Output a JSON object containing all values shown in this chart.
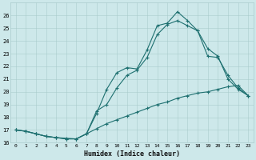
{
  "xlabel": "Humidex (Indice chaleur)",
  "xlim": [
    -0.5,
    23.5
  ],
  "ylim": [
    16,
    27
  ],
  "yticks": [
    16,
    17,
    18,
    19,
    20,
    21,
    22,
    23,
    24,
    25,
    26
  ],
  "xticks": [
    0,
    1,
    2,
    3,
    4,
    5,
    6,
    7,
    8,
    9,
    10,
    11,
    12,
    13,
    14,
    15,
    16,
    17,
    18,
    19,
    20,
    21,
    22,
    23
  ],
  "bg_color": "#cde8ea",
  "grid_color": "#aacccc",
  "line_color": "#1e7070",
  "line1_x": [
    0,
    1,
    2,
    3,
    4,
    5,
    6,
    7,
    8,
    9,
    10,
    11,
    12,
    13,
    14,
    15,
    16,
    17,
    18,
    19,
    20,
    21,
    22,
    23
  ],
  "line1_y": [
    17.0,
    16.9,
    16.7,
    16.5,
    16.4,
    16.35,
    16.3,
    16.7,
    17.1,
    17.5,
    17.8,
    18.1,
    18.4,
    18.7,
    19.0,
    19.2,
    19.5,
    19.7,
    19.9,
    20.0,
    20.2,
    20.4,
    20.5,
    19.7
  ],
  "line2_x": [
    0,
    1,
    2,
    3,
    4,
    5,
    6,
    7,
    8,
    9,
    10,
    11,
    12,
    13,
    14,
    15,
    16,
    17,
    18,
    19,
    20,
    21,
    22,
    23
  ],
  "line2_y": [
    17.0,
    16.9,
    16.7,
    16.5,
    16.4,
    16.3,
    16.3,
    16.7,
    18.3,
    20.2,
    21.5,
    21.9,
    21.8,
    23.3,
    25.2,
    25.4,
    26.3,
    25.6,
    24.8,
    23.4,
    22.8,
    21.0,
    20.2,
    19.7
  ],
  "line3_x": [
    0,
    1,
    2,
    3,
    4,
    5,
    6,
    7,
    8,
    9,
    10,
    11,
    12,
    13,
    14,
    15,
    16,
    17,
    18,
    19,
    20,
    21,
    22,
    23
  ],
  "line3_y": [
    17.0,
    16.9,
    16.7,
    16.5,
    16.4,
    16.3,
    16.3,
    16.7,
    18.5,
    19.0,
    20.3,
    21.3,
    21.7,
    22.7,
    24.5,
    25.3,
    25.6,
    25.2,
    24.8,
    22.8,
    22.7,
    21.3,
    20.3,
    19.7
  ]
}
